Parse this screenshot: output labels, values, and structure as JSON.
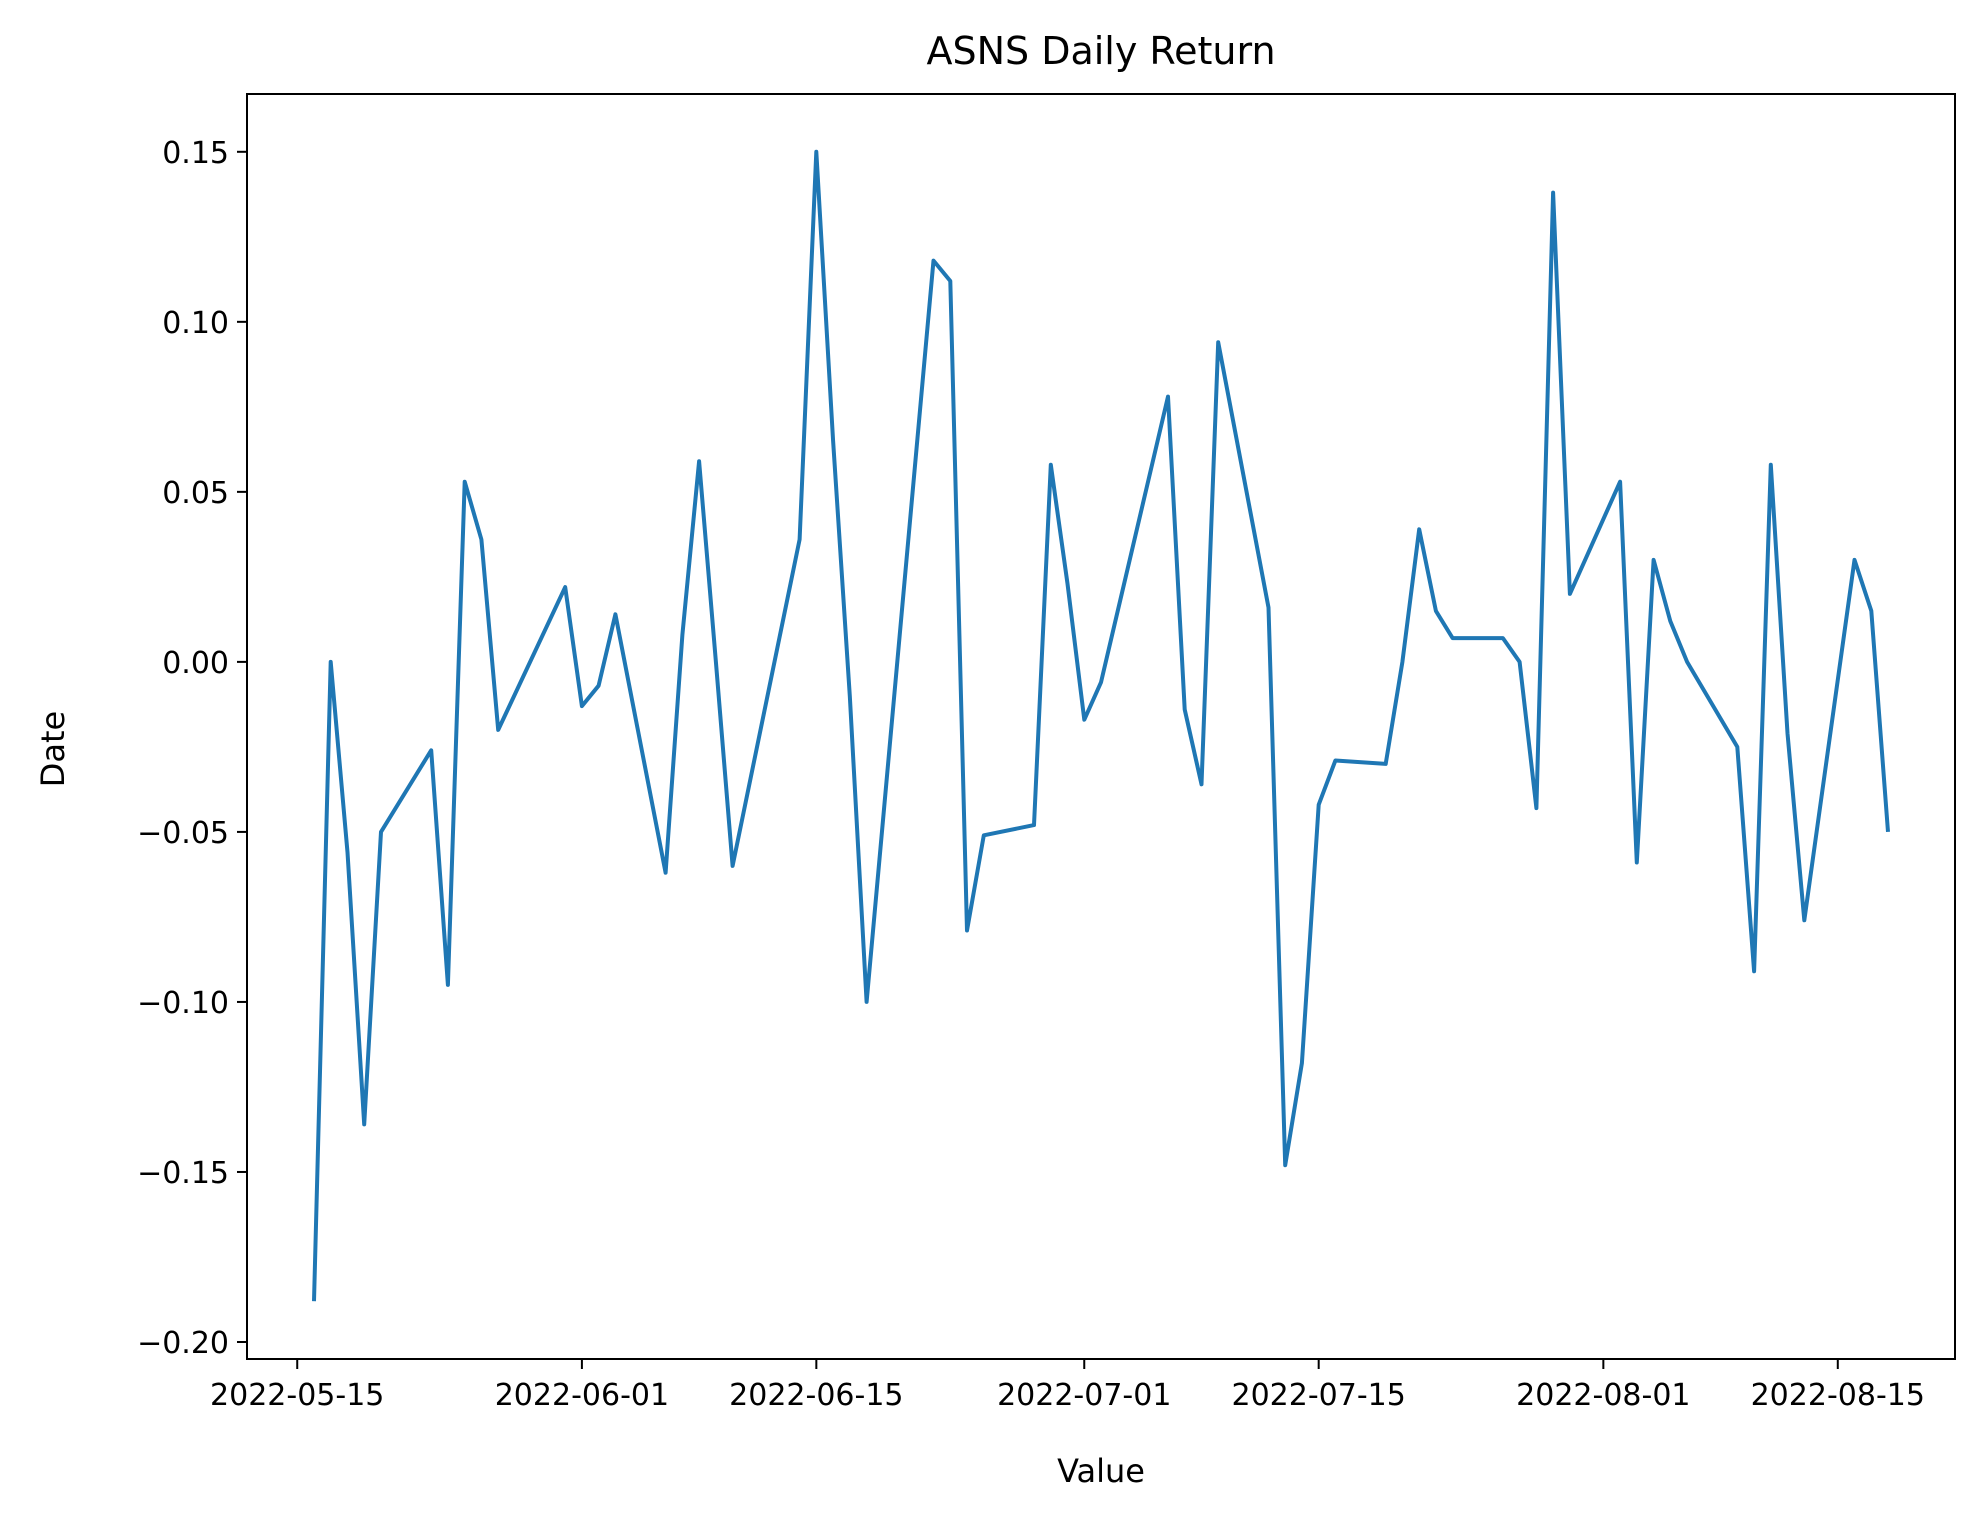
{
  "chart_data": {
    "type": "line",
    "title": "ASNS Daily Return",
    "xlabel": "Value",
    "ylabel": "Date",
    "x_axis_type": "date",
    "xlim": [
      "2022-05-12",
      "2022-08-22"
    ],
    "ylim": [
      -0.205,
      0.167
    ],
    "grid": false,
    "legend": "none",
    "x_ticks": [
      "2022-05-15",
      "2022-06-01",
      "2022-06-15",
      "2022-07-01",
      "2022-07-15",
      "2022-08-01",
      "2022-08-15"
    ],
    "y_ticks": [
      {
        "value": -0.2,
        "label": "−0.20"
      },
      {
        "value": -0.15,
        "label": "−0.15"
      },
      {
        "value": -0.1,
        "label": "−0.10"
      },
      {
        "value": -0.05,
        "label": "−0.05"
      },
      {
        "value": 0.0,
        "label": "0.00"
      },
      {
        "value": 0.05,
        "label": "0.05"
      },
      {
        "value": 0.1,
        "label": "0.10"
      },
      {
        "value": 0.15,
        "label": "0.15"
      }
    ],
    "series": [
      {
        "color": "#1f77b4",
        "points": [
          {
            "x": "2022-05-16",
            "y": -0.188
          },
          {
            "x": "2022-05-17",
            "y": 0.0
          },
          {
            "x": "2022-05-18",
            "y": -0.056
          },
          {
            "x": "2022-05-19",
            "y": -0.136
          },
          {
            "x": "2022-05-20",
            "y": -0.05
          },
          {
            "x": "2022-05-23",
            "y": -0.026
          },
          {
            "x": "2022-05-24",
            "y": -0.095
          },
          {
            "x": "2022-05-25",
            "y": 0.053
          },
          {
            "x": "2022-05-26",
            "y": 0.036
          },
          {
            "x": "2022-05-27",
            "y": -0.02
          },
          {
            "x": "2022-05-31",
            "y": 0.022
          },
          {
            "x": "2022-06-01",
            "y": -0.013
          },
          {
            "x": "2022-06-02",
            "y": -0.007
          },
          {
            "x": "2022-06-03",
            "y": 0.014
          },
          {
            "x": "2022-06-06",
            "y": -0.062
          },
          {
            "x": "2022-06-07",
            "y": 0.008
          },
          {
            "x": "2022-06-08",
            "y": 0.059
          },
          {
            "x": "2022-06-09",
            "y": 0.0
          },
          {
            "x": "2022-06-10",
            "y": -0.06
          },
          {
            "x": "2022-06-14",
            "y": 0.036
          },
          {
            "x": "2022-06-15",
            "y": 0.15
          },
          {
            "x": "2022-06-16",
            "y": 0.065
          },
          {
            "x": "2022-06-17",
            "y": -0.01
          },
          {
            "x": "2022-06-18",
            "y": -0.1
          },
          {
            "x": "2022-06-22",
            "y": 0.118
          },
          {
            "x": "2022-06-23",
            "y": 0.112
          },
          {
            "x": "2022-06-24",
            "y": -0.079
          },
          {
            "x": "2022-06-25",
            "y": -0.051
          },
          {
            "x": "2022-06-28",
            "y": -0.048
          },
          {
            "x": "2022-06-29",
            "y": 0.058
          },
          {
            "x": "2022-06-30",
            "y": 0.023
          },
          {
            "x": "2022-07-01",
            "y": -0.017
          },
          {
            "x": "2022-07-02",
            "y": -0.006
          },
          {
            "x": "2022-07-06",
            "y": 0.078
          },
          {
            "x": "2022-07-07",
            "y": -0.014
          },
          {
            "x": "2022-07-08",
            "y": -0.036
          },
          {
            "x": "2022-07-09",
            "y": 0.094
          },
          {
            "x": "2022-07-12",
            "y": 0.016
          },
          {
            "x": "2022-07-13",
            "y": -0.148
          },
          {
            "x": "2022-07-14",
            "y": -0.118
          },
          {
            "x": "2022-07-15",
            "y": -0.042
          },
          {
            "x": "2022-07-16",
            "y": -0.029
          },
          {
            "x": "2022-07-19",
            "y": -0.03
          },
          {
            "x": "2022-07-20",
            "y": 0.0
          },
          {
            "x": "2022-07-21",
            "y": 0.039
          },
          {
            "x": "2022-07-22",
            "y": 0.015
          },
          {
            "x": "2022-07-23",
            "y": 0.007
          },
          {
            "x": "2022-07-26",
            "y": 0.007
          },
          {
            "x": "2022-07-27",
            "y": 0.0
          },
          {
            "x": "2022-07-28",
            "y": -0.043
          },
          {
            "x": "2022-07-29",
            "y": 0.138
          },
          {
            "x": "2022-07-30",
            "y": 0.02
          },
          {
            "x": "2022-08-02",
            "y": 0.053
          },
          {
            "x": "2022-08-03",
            "y": -0.059
          },
          {
            "x": "2022-08-04",
            "y": 0.03
          },
          {
            "x": "2022-08-05",
            "y": 0.012
          },
          {
            "x": "2022-08-06",
            "y": 0.0
          },
          {
            "x": "2022-08-09",
            "y": -0.025
          },
          {
            "x": "2022-08-10",
            "y": -0.091
          },
          {
            "x": "2022-08-11",
            "y": 0.058
          },
          {
            "x": "2022-08-12",
            "y": -0.021
          },
          {
            "x": "2022-08-13",
            "y": -0.076
          },
          {
            "x": "2022-08-16",
            "y": 0.03
          },
          {
            "x": "2022-08-17",
            "y": 0.015
          },
          {
            "x": "2022-08-18",
            "y": -0.05
          }
        ]
      }
    ]
  }
}
